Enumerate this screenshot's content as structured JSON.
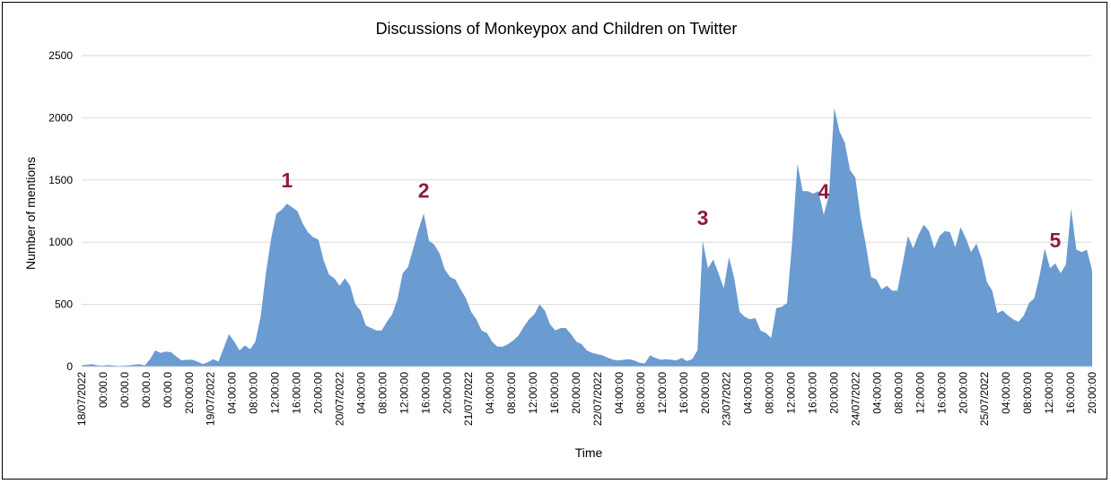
{
  "chart_data": {
    "type": "area",
    "title": "Discussions of Monkeypox and Children on Twitter",
    "xlabel": "Time",
    "ylabel": "Number of mentions",
    "ylim": [
      0,
      2500
    ],
    "yticks": [
      0,
      500,
      1000,
      1500,
      2000,
      2500
    ],
    "grid": true,
    "legend": "none",
    "colors": {
      "area": "#6a9bd1",
      "grid": "#d9d9d9",
      "peak_label": "#8e1b3f"
    },
    "x_tick_labels": [
      "18/07/2022",
      "00:00.0",
      "00:00.0",
      "00:00.0",
      "00:00.0",
      "20:00:00",
      "19/07/2022",
      "04:00:00",
      "08:00:00",
      "12:00:00",
      "16:00:00",
      "20:00:00",
      "20/07/2022",
      "04:00:00",
      "08:00:00",
      "12:00:00",
      "16:00:00",
      "20:00:00",
      "21/07/2022",
      "04:00:00",
      "08:00:00",
      "12:00:00",
      "16:00:00",
      "20:00:00",
      "22/07/2022",
      "04:00:00",
      "08:00:00",
      "12:00:00",
      "16:00:00",
      "20:00:00",
      "23/07/2022",
      "04:00:00",
      "08:00:00",
      "12:00:00",
      "16:00:00",
      "20:00:00",
      "24/07/2022",
      "04:00:00",
      "08:00:00",
      "12:00:00",
      "16:00:00",
      "20:00:00",
      "25/07/2022",
      "04:00:00",
      "08:00:00",
      "12:00:00",
      "16:00:00",
      "20:00:00"
    ],
    "values": [
      10,
      15,
      20,
      10,
      8,
      12,
      10,
      5,
      8,
      10,
      15,
      20,
      10,
      60,
      130,
      110,
      120,
      115,
      80,
      50,
      55,
      55,
      40,
      20,
      35,
      60,
      40,
      150,
      260,
      200,
      130,
      170,
      140,
      200,
      400,
      750,
      1030,
      1230,
      1260,
      1310,
      1280,
      1250,
      1150,
      1080,
      1040,
      1020,
      850,
      740,
      710,
      650,
      710,
      650,
      500,
      450,
      330,
      310,
      290,
      290,
      360,
      420,
      540,
      750,
      800,
      950,
      1100,
      1230,
      1010,
      980,
      910,
      780,
      720,
      700,
      620,
      550,
      440,
      380,
      290,
      270,
      200,
      160,
      160,
      180,
      210,
      250,
      320,
      380,
      420,
      500,
      450,
      340,
      290,
      310,
      310,
      260,
      200,
      180,
      130,
      110,
      100,
      90,
      70,
      55,
      50,
      55,
      60,
      50,
      30,
      25,
      90,
      70,
      55,
      60,
      55,
      50,
      70,
      45,
      60,
      130,
      1010,
      790,
      860,
      750,
      630,
      880,
      710,
      440,
      400,
      380,
      390,
      290,
      270,
      230,
      470,
      480,
      510,
      1000,
      1630,
      1410,
      1410,
      1390,
      1410,
      1220,
      1380,
      2080,
      1890,
      1800,
      1580,
      1520,
      1200,
      980,
      720,
      700,
      620,
      650,
      610,
      610,
      830,
      1050,
      950,
      1060,
      1140,
      1090,
      950,
      1050,
      1090,
      1080,
      960,
      1120,
      1030,
      920,
      990,
      870,
      680,
      610,
      430,
      450,
      410,
      380,
      360,
      410,
      510,
      550,
      730,
      950,
      790,
      830,
      750,
      820,
      1270,
      940,
      920,
      940,
      770
    ],
    "annotations": [
      "1",
      "2",
      "3",
      "4",
      "5"
    ]
  }
}
